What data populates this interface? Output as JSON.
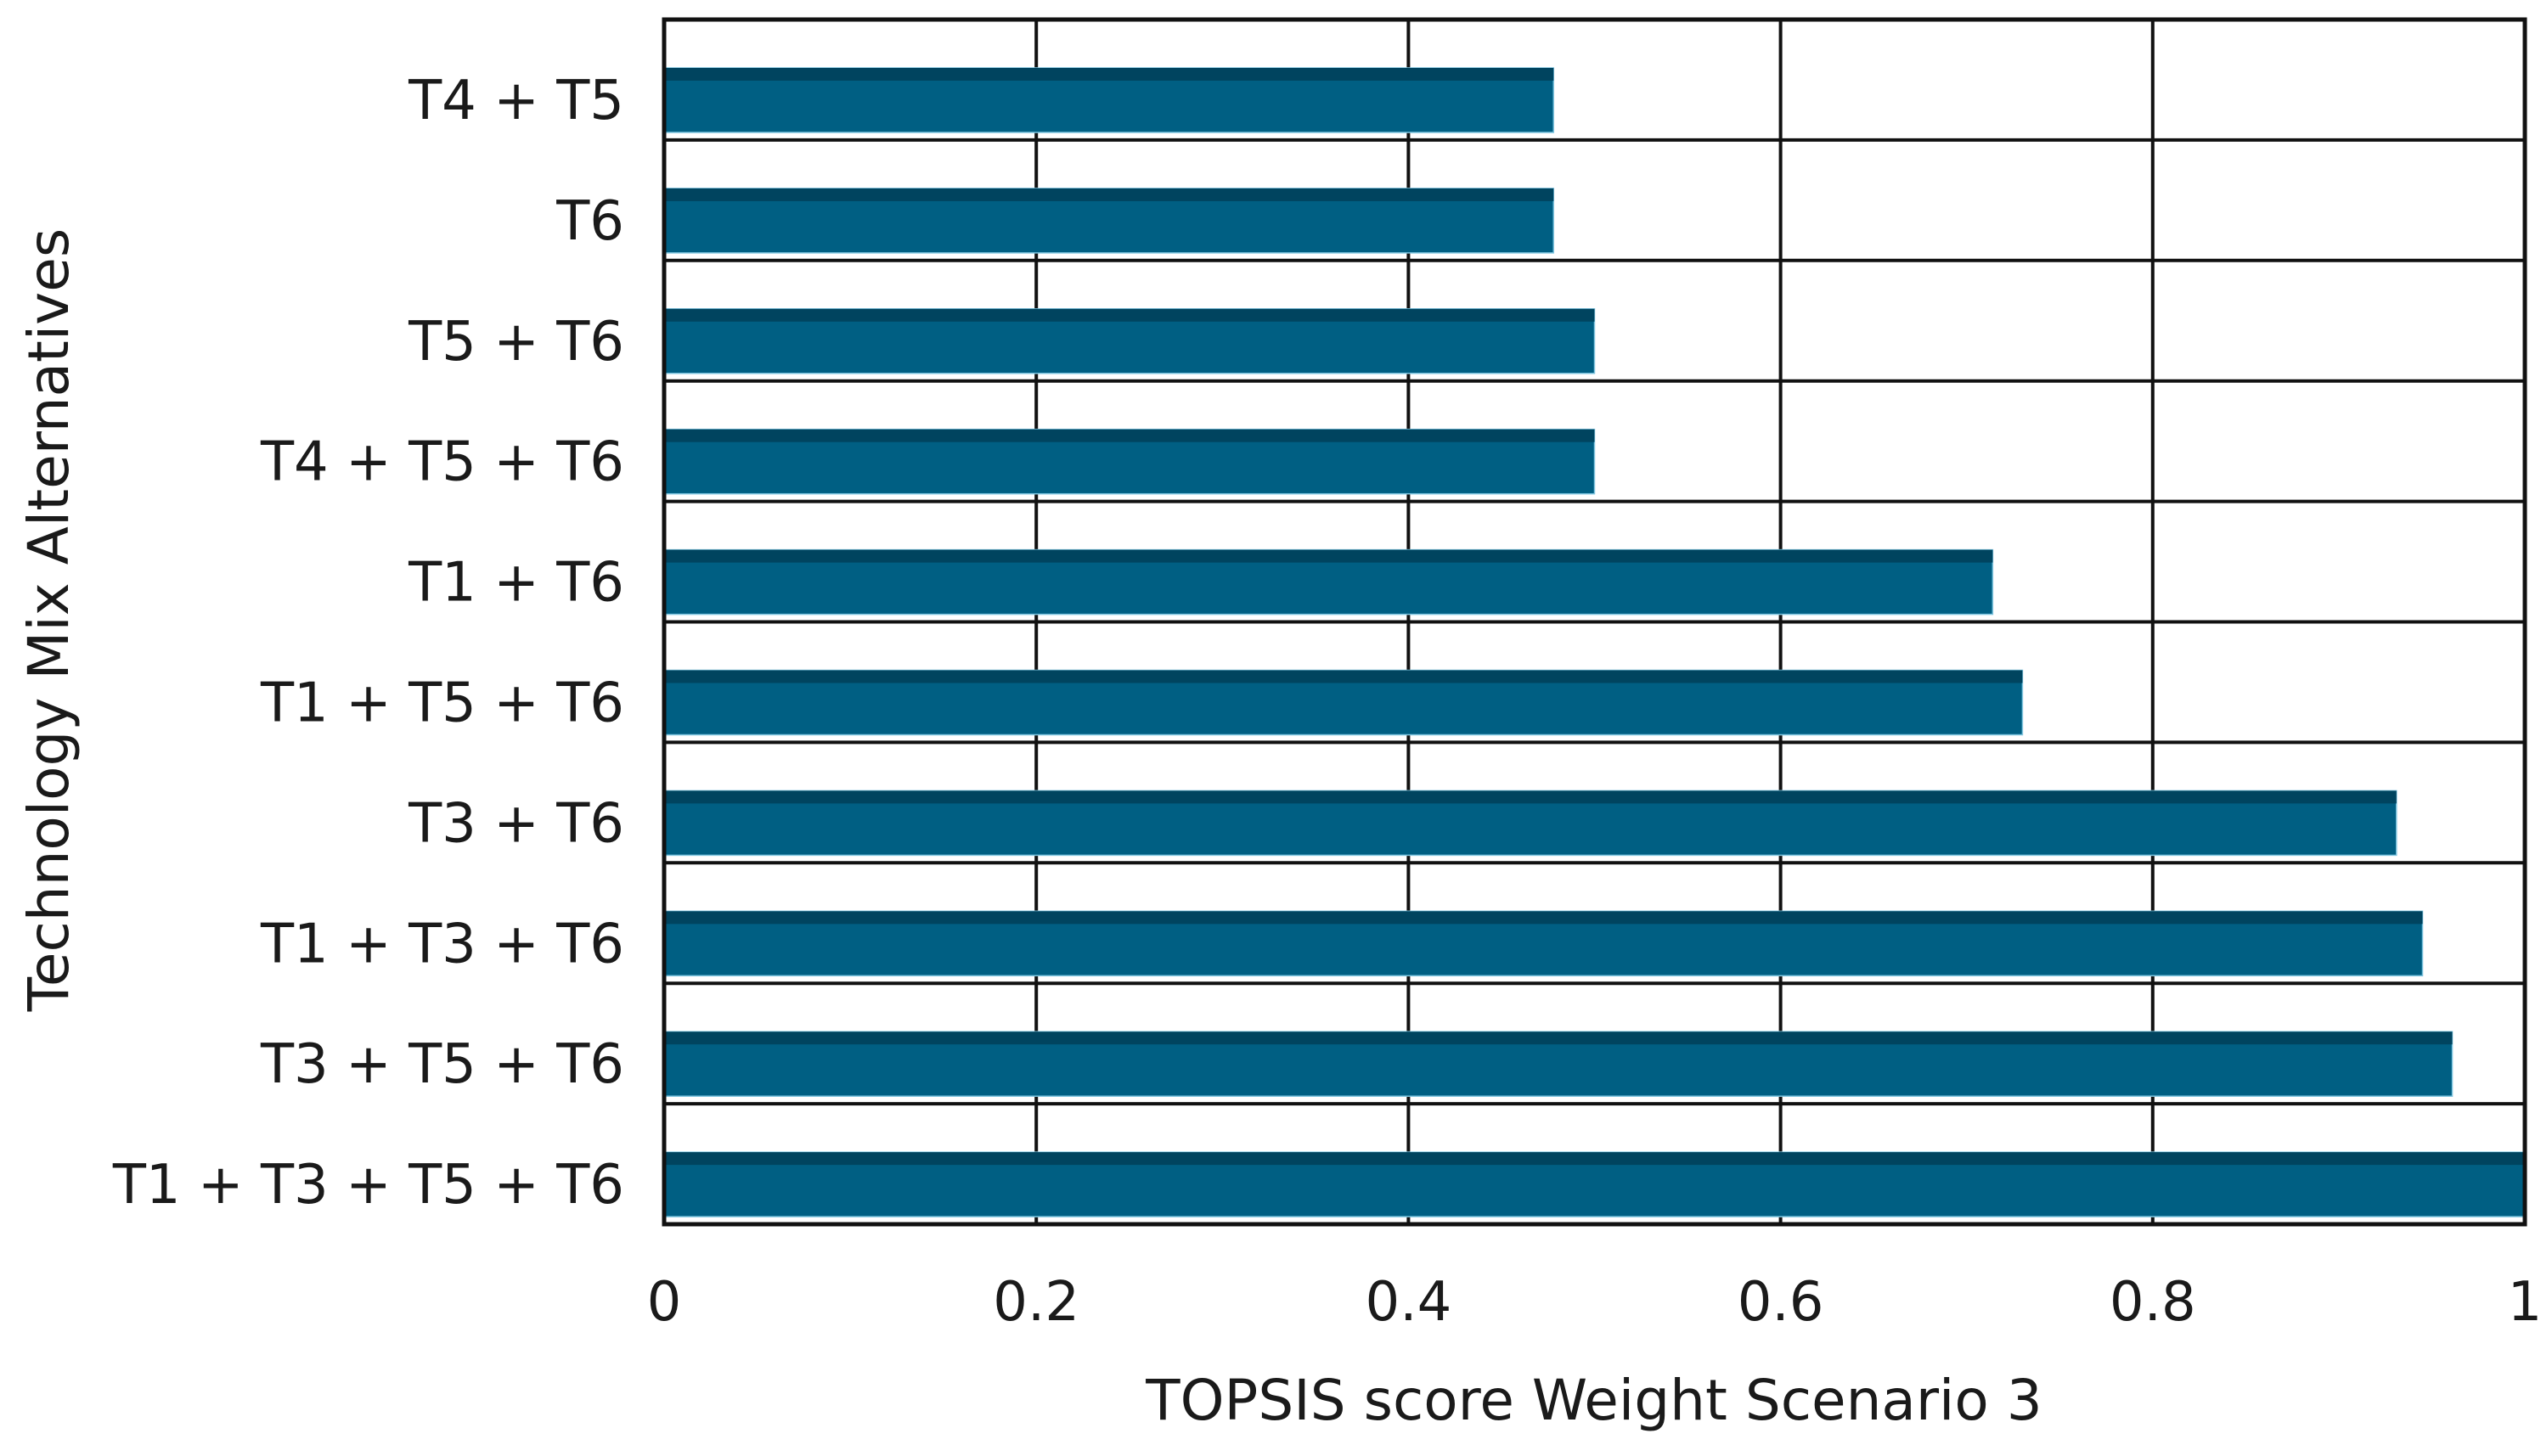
{
  "chart_data": {
    "type": "bar",
    "orientation": "horizontal",
    "title": "",
    "xlabel": "TOPSIS score Weight Scenario 3",
    "ylabel": "Technology Mix Alternatives",
    "categories": [
      "T4 + T5",
      "T6",
      "T5 + T6",
      "T4 + T5 + T6",
      "T1 + T6",
      "T1 + T5 + T6",
      "T3 + T6",
      "T1 + T3 + T6",
      "T3 + T5 + T6",
      "T1 + T3 + T5 + T6"
    ],
    "values": [
      0.478,
      0.478,
      0.5,
      0.5,
      0.714,
      0.73,
      0.931,
      0.945,
      0.961,
      1.0
    ],
    "xlim": [
      0,
      1
    ],
    "xticks": [
      "0",
      "0.2",
      "0.4",
      "0.6",
      "0.8",
      "1"
    ],
    "grid": true,
    "bar_color": "#005f83",
    "bar_top_color": "#00445f"
  }
}
